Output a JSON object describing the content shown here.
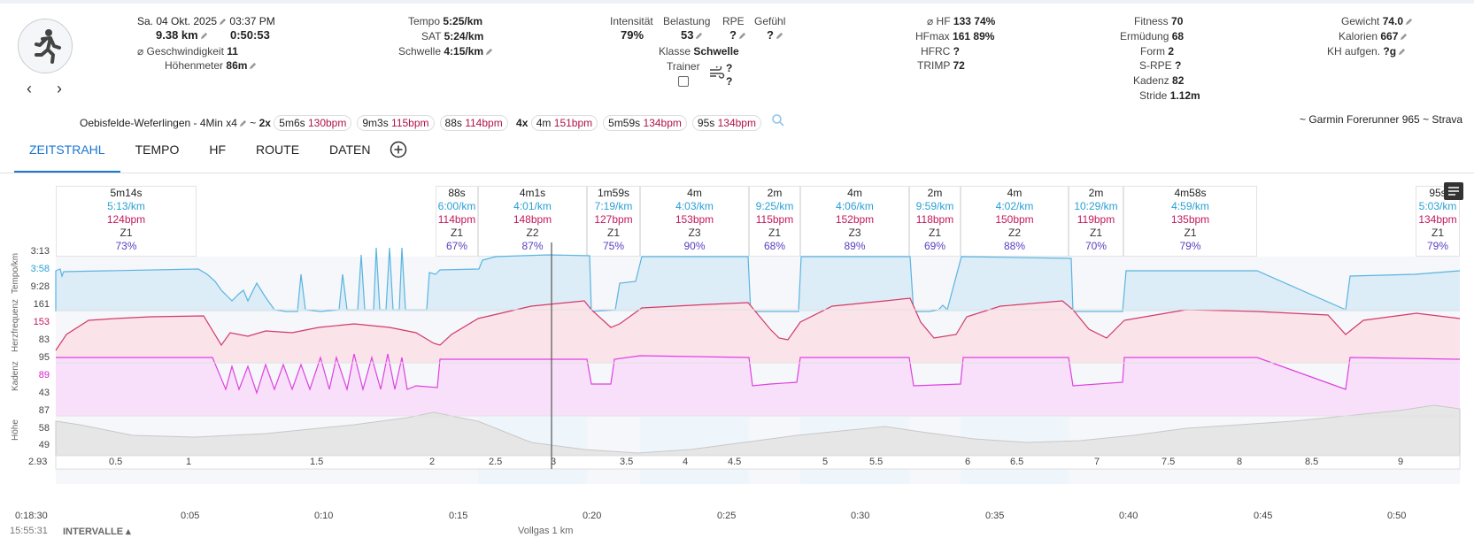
{
  "header": {
    "date": "Sa. 04 Okt. 2025",
    "time": "03:37 PM",
    "distance": "9.38 km",
    "duration": "0:50:53",
    "speed_label": "⌀ Geschwindigkeit",
    "speed_value": "11",
    "elevation_label": "Höhenmeter",
    "elevation_value": "86m",
    "tempo_label": "Tempo",
    "tempo_value": "5:25/km",
    "sat_label": "SAT",
    "sat_value": "5:24/km",
    "threshold_label": "Schwelle",
    "threshold_value": "4:15/km",
    "intensity_label": "Intensität",
    "intensity_value": "79%",
    "load_label": "Belastung",
    "load_value": "53",
    "rpe_label": "RPE",
    "rpe_value": "?",
    "feel_label": "Gefühl",
    "feel_value": "?",
    "class_label": "Klasse",
    "class_value": "Schwelle",
    "trainer_label": "Trainer",
    "wind_q1": "?",
    "wind_q2": "?",
    "hf_label": "⌀ HF",
    "hf_value": "133",
    "hf_pct": "74%",
    "hfmax_label": "HFmax",
    "hfmax_value": "161",
    "hfmax_pct": "89%",
    "hfrc_label": "HFRC",
    "hfrc_value": "?",
    "trimp_label": "TRIMP",
    "trimp_value": "72",
    "fitness_label": "Fitness",
    "fitness_value": "70",
    "fatigue_label": "Ermüdung",
    "fatigue_value": "68",
    "form_label": "Form",
    "form_value": "2",
    "srpe_label": "S-RPE",
    "srpe_value": "?",
    "cadence_label": "Kadenz",
    "cadence_value": "82",
    "stride_label": "Stride",
    "stride_value": "1.12m",
    "weight_label": "Gewicht",
    "weight_value": "74.0",
    "calories_label": "Kalorien",
    "calories_value": "667",
    "carbs_label": "KH aufgen.",
    "carbs_value": "?g"
  },
  "summary": {
    "name": "Oebisfelde-Weferlingen - 4Min x4",
    "tilde": "~",
    "group1_count": "2x",
    "group1": [
      {
        "time": "5m6s",
        "bpm": "130bpm"
      },
      {
        "time": "9m3s",
        "bpm": "115bpm"
      },
      {
        "time": "88s",
        "bpm": "114bpm"
      }
    ],
    "group2_count": "4x",
    "group2": [
      {
        "time": "4m",
        "bpm": "151bpm"
      },
      {
        "time": "5m59s",
        "bpm": "134bpm"
      },
      {
        "time": "95s",
        "bpm": "134bpm"
      }
    ],
    "device": "~ Garmin Forerunner 965 ~ Strava"
  },
  "tabs": [
    "ZEITSTRAHL",
    "TEMPO",
    "HF",
    "ROUTE",
    "DATEN"
  ],
  "intervals": [
    {
      "t": "5m14s",
      "p": "5:13/km",
      "h": "124bpm",
      "z": "Z1",
      "pc": "73%"
    },
    {
      "t": "88s",
      "p": "6:00/km",
      "h": "114bpm",
      "z": "Z1",
      "pc": "67%"
    },
    {
      "t": "4m1s",
      "p": "4:01/km",
      "h": "148bpm",
      "z": "Z2",
      "pc": "87%"
    },
    {
      "t": "1m59s",
      "p": "7:19/km",
      "h": "127bpm",
      "z": "Z1",
      "pc": "75%"
    },
    {
      "t": "4m",
      "p": "4:03/km",
      "h": "153bpm",
      "z": "Z3",
      "pc": "90%"
    },
    {
      "t": "2m",
      "p": "9:25/km",
      "h": "115bpm",
      "z": "Z1",
      "pc": "68%"
    },
    {
      "t": "4m",
      "p": "4:06/km",
      "h": "152bpm",
      "z": "Z3",
      "pc": "89%"
    },
    {
      "t": "2m",
      "p": "9:59/km",
      "h": "118bpm",
      "z": "Z1",
      "pc": "69%"
    },
    {
      "t": "4m",
      "p": "4:02/km",
      "h": "150bpm",
      "z": "Z2",
      "pc": "88%"
    },
    {
      "t": "2m",
      "p": "10:29/km",
      "h": "119bpm",
      "z": "Z1",
      "pc": "70%"
    },
    {
      "t": "4m58s",
      "p": "4:59/km",
      "h": "135bpm",
      "z": "Z1",
      "pc": "79%"
    },
    {
      "t": "95s",
      "p": "5:03/km",
      "h": "134bpm",
      "z": "Z1",
      "pc": "79%"
    }
  ],
  "axes": {
    "tempo_title": "Tempo/km",
    "tempo_ticks": [
      "3:13",
      "3:58",
      "9:28"
    ],
    "hf_title": "Herzfrequenz",
    "hf_ticks": [
      "161",
      "153",
      "83"
    ],
    "cad_title": "Kadenz",
    "cad_ticks": [
      "95",
      "89",
      "43"
    ],
    "alt_title": "Höhe",
    "alt_ticks": [
      "87",
      "58",
      "49"
    ],
    "km_start": "2.93",
    "km_ticks": [
      "0.5",
      "1",
      "1.5",
      "2",
      "2.5",
      "3",
      "3.5",
      "4",
      "4.5",
      "5",
      "5.5",
      "6",
      "6.5",
      "7",
      "7.5",
      "8",
      "8.5",
      "9"
    ],
    "time_start": "0:18:30",
    "time_ticks": [
      "0:05",
      "0:10",
      "0:15",
      "0:20",
      "0:25",
      "0:30",
      "0:35",
      "0:40",
      "0:45",
      "0:50"
    ],
    "clock": "15:55:31",
    "intervals_label": "INTERVALLE",
    "cursor_label": "Vollgas 1 km"
  },
  "colors": {
    "tempo": "#5ab4e0",
    "hf": "#d23a6a",
    "cadence": "#e040e0",
    "altitude": "#bbbbbb",
    "accent": "#1976d2"
  }
}
